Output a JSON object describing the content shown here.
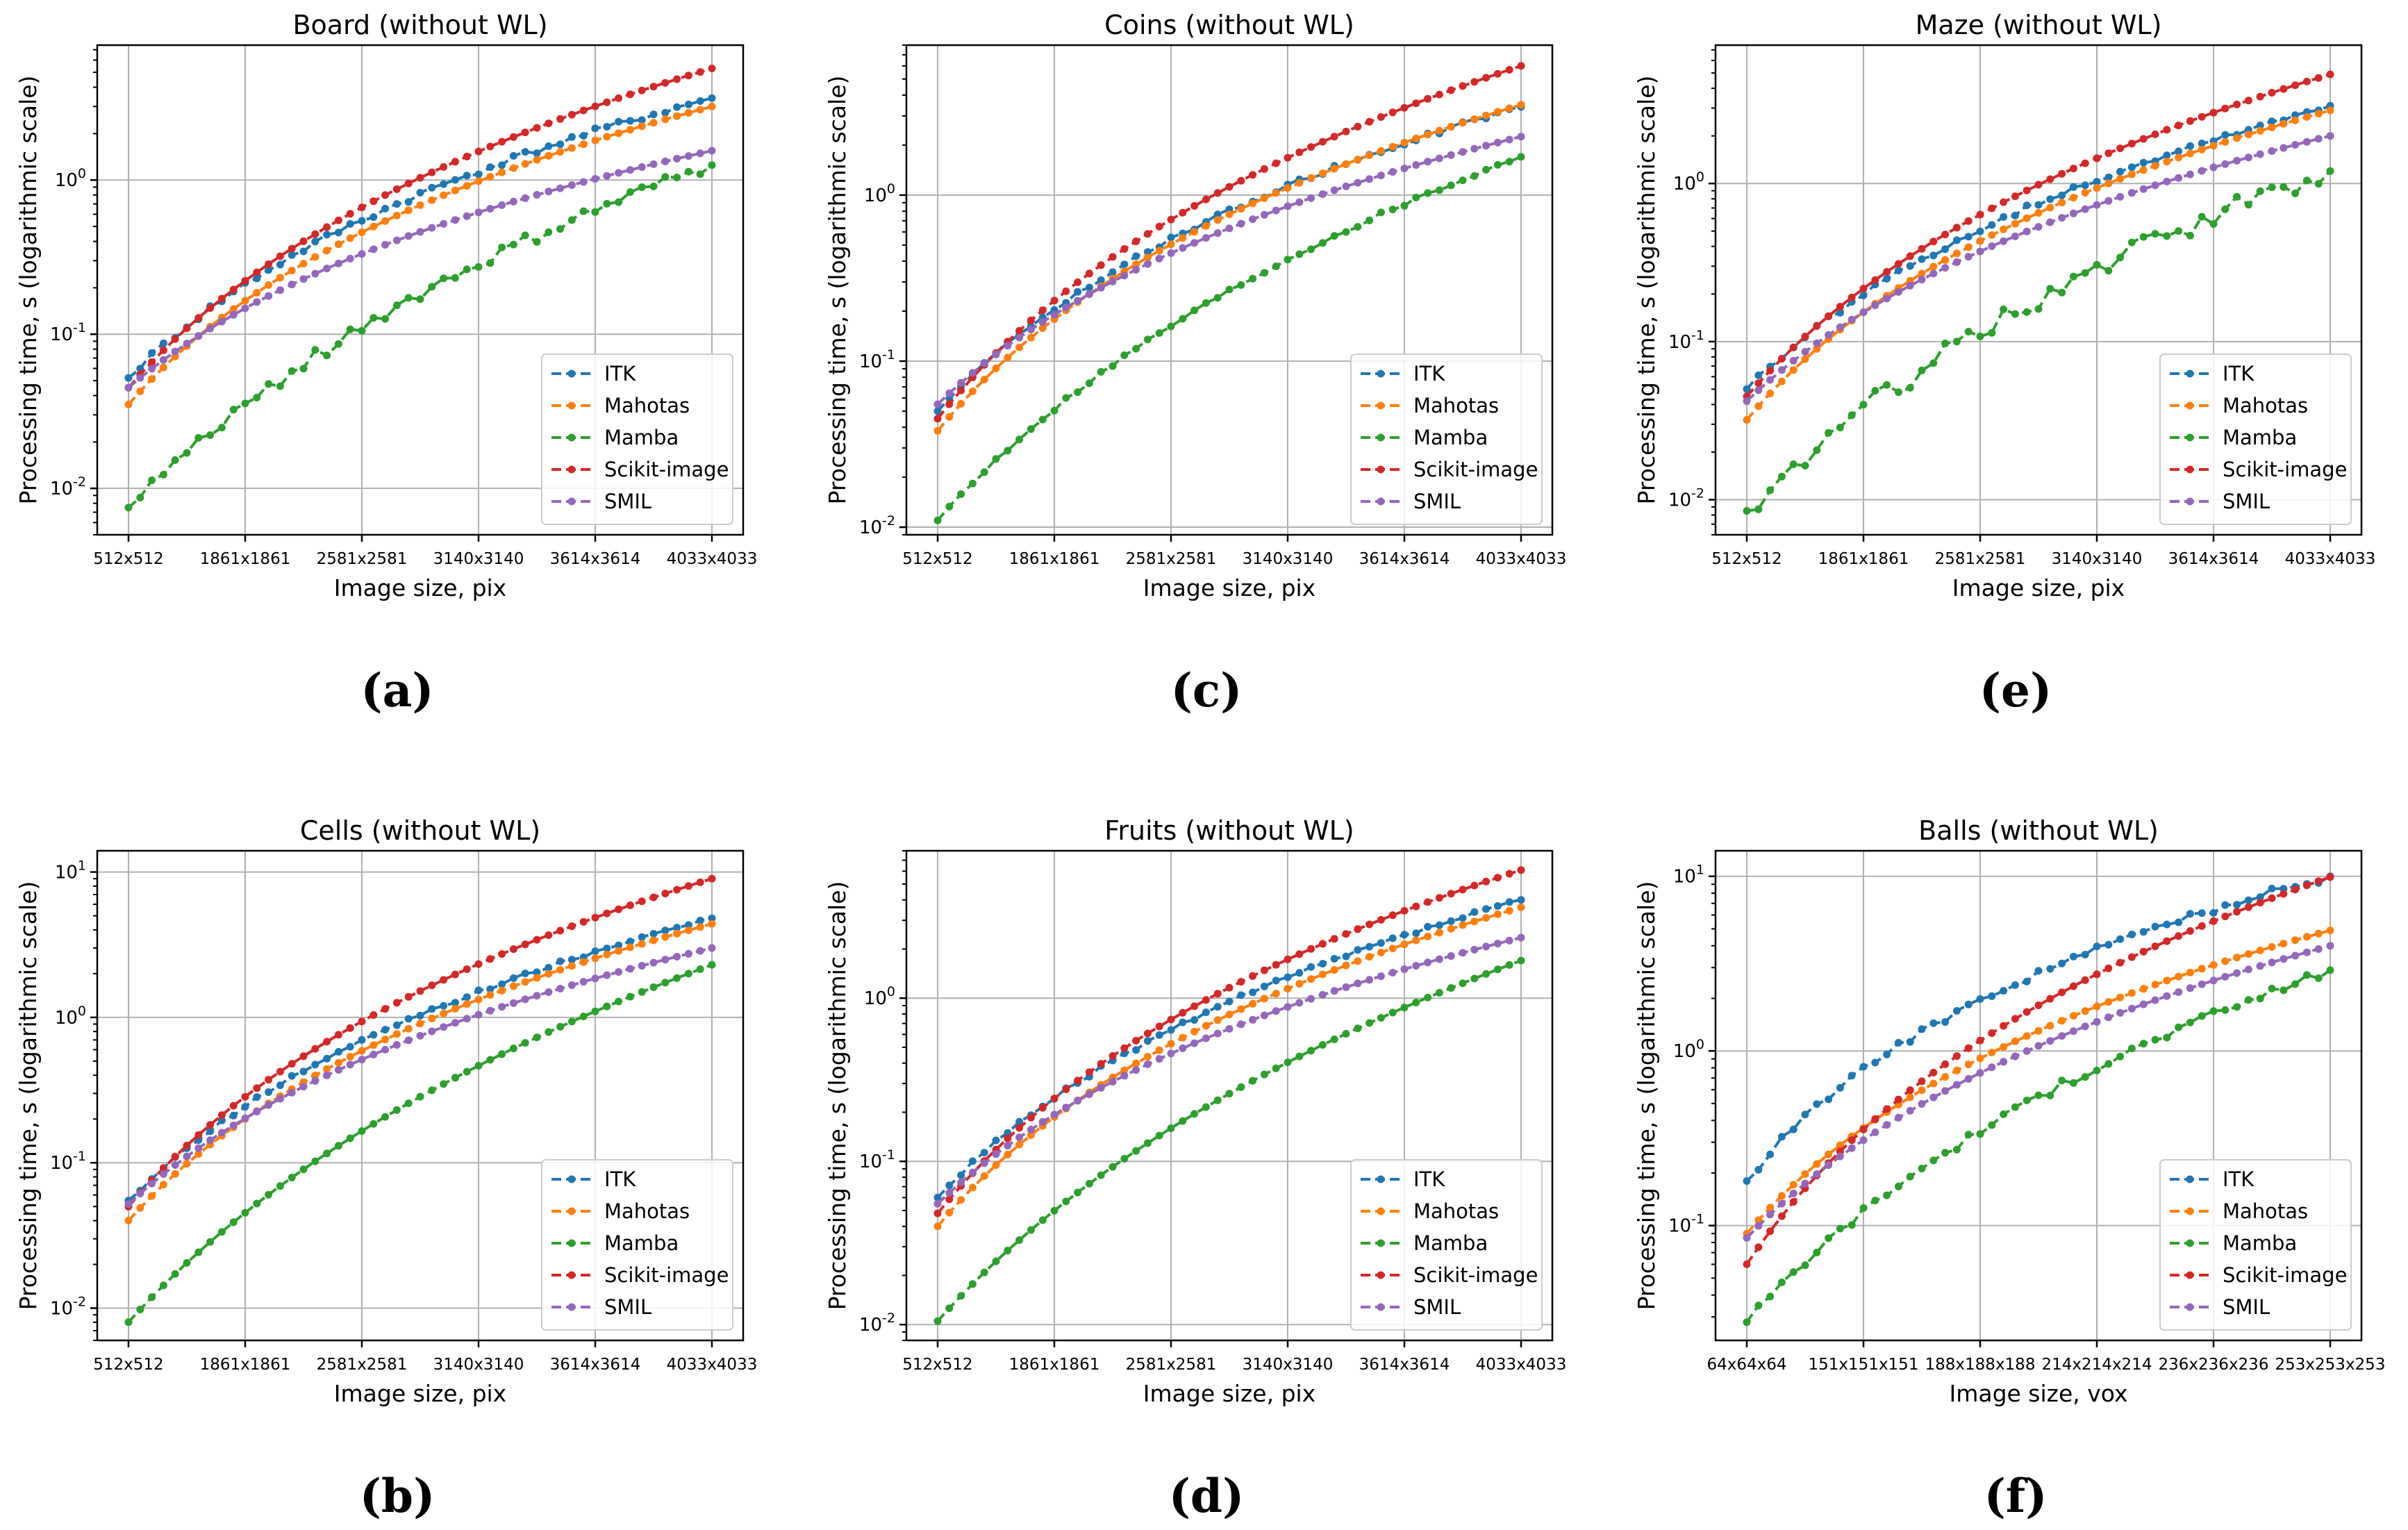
{
  "colors": {
    "ITK": "#1f77b4",
    "Mahotas": "#ff7f0e",
    "Mamba": "#2ca02c",
    "Scikit-image": "#d62728",
    "SMIL": "#9467bd",
    "grid": "#b0b0b0"
  },
  "chart_data": [
    {
      "id": "board",
      "panel_label": "(a)",
      "type": "line",
      "title": "Board (without WL)",
      "xlabel": "Image size, pix",
      "ylabel": "Processing time, s (logarithmic scale)",
      "yscale": "log",
      "ylim": [
        0.005,
        7.5
      ],
      "ytick_values": [
        0.01,
        0.1,
        1
      ],
      "ytick_labels": [
        "10^-2",
        "10^-1",
        "10^0"
      ],
      "xtick_labels": [
        "512x512",
        "1861x1861",
        "2581x2581",
        "3140x3140",
        "3614x3614",
        "4033x4033"
      ],
      "legend": [
        "ITK",
        "Mahotas",
        "Mamba",
        "Scikit-image",
        "SMIL"
      ],
      "legend_loc": "lower right",
      "series": [
        {
          "name": "ITK",
          "start": 0.052,
          "end": 3.4,
          "k": 0.35,
          "noise": 0.05
        },
        {
          "name": "Mahotas",
          "start": 0.035,
          "end": 3.0,
          "k": 0.3,
          "noise": 0.0
        },
        {
          "name": "Mamba",
          "start": 0.0075,
          "end": 1.25,
          "k": 0.55,
          "noise": 0.1
        },
        {
          "name": "Scikit-image",
          "start": 0.045,
          "end": 5.3,
          "k": 0.35,
          "noise": 0.0
        },
        {
          "name": "SMIL",
          "start": 0.045,
          "end": 1.55,
          "k": 0.35,
          "noise": 0.0
        }
      ]
    },
    {
      "id": "coins",
      "panel_label": "(c)",
      "type": "line",
      "title": "Coins (without WL)",
      "xlabel": "Image size, pix",
      "ylabel": "Processing time, s (logarithmic scale)",
      "yscale": "log",
      "ylim": [
        0.009,
        8
      ],
      "ytick_values": [
        0.01,
        0.1,
        1
      ],
      "ytick_labels": [
        "10^-2",
        "10^-1",
        "10^0"
      ],
      "xtick_labels": [
        "512x512",
        "1861x1861",
        "2581x2581",
        "3140x3140",
        "3614x3614",
        "4033x4033"
      ],
      "legend": [
        "ITK",
        "Mahotas",
        "Mamba",
        "Scikit-image",
        "SMIL"
      ],
      "legend_loc": "lower right",
      "series": [
        {
          "name": "ITK",
          "start": 0.05,
          "end": 3.4,
          "k": 0.35,
          "noise": 0.03
        },
        {
          "name": "Mahotas",
          "start": 0.038,
          "end": 3.5,
          "k": 0.32,
          "noise": 0.0
        },
        {
          "name": "Mamba",
          "start": 0.011,
          "end": 1.7,
          "k": 0.5,
          "noise": 0.03
        },
        {
          "name": "Scikit-image",
          "start": 0.045,
          "end": 6.0,
          "k": 0.35,
          "noise": 0.0
        },
        {
          "name": "SMIL",
          "start": 0.055,
          "end": 2.25,
          "k": 0.35,
          "noise": 0.0
        }
      ]
    },
    {
      "id": "maze",
      "panel_label": "(e)",
      "type": "line",
      "title": "Maze (without WL)",
      "xlabel": "Image size, pix",
      "ylabel": "Processing time, s (logarithmic scale)",
      "yscale": "log",
      "ylim": [
        0.006,
        7.5
      ],
      "ytick_values": [
        0.01,
        0.1,
        1
      ],
      "ytick_labels": [
        "10^-2",
        "10^-1",
        "10^0"
      ],
      "xtick_labels": [
        "512x512",
        "1861x1861",
        "2581x2581",
        "3140x3140",
        "3614x3614",
        "4033x4033"
      ],
      "legend": [
        "ITK",
        "Mahotas",
        "Mamba",
        "Scikit-image",
        "SMIL"
      ],
      "legend_loc": "lower right",
      "series": [
        {
          "name": "ITK",
          "start": 0.05,
          "end": 3.1,
          "k": 0.35,
          "noise": 0.04
        },
        {
          "name": "Mahotas",
          "start": 0.032,
          "end": 2.9,
          "k": 0.3,
          "noise": 0.0
        },
        {
          "name": "Mamba",
          "start": 0.0085,
          "end": 1.2,
          "k": 0.55,
          "noise": 0.16
        },
        {
          "name": "Scikit-image",
          "start": 0.045,
          "end": 4.9,
          "k": 0.35,
          "noise": 0.0
        },
        {
          "name": "SMIL",
          "start": 0.042,
          "end": 2.0,
          "k": 0.35,
          "noise": 0.0
        }
      ]
    },
    {
      "id": "cells",
      "panel_label": "(b)",
      "type": "line",
      "title": "Cells (without WL)",
      "xlabel": "Image size, pix",
      "ylabel": "Processing time, s (logarithmic scale)",
      "yscale": "log",
      "ylim": [
        0.006,
        14
      ],
      "ytick_values": [
        0.01,
        0.1,
        1,
        10
      ],
      "ytick_labels": [
        "10^-2",
        "10^-1",
        "10^0",
        "10^1"
      ],
      "xtick_labels": [
        "512x512",
        "1861x1861",
        "2581x2581",
        "3140x3140",
        "3614x3614",
        "4033x4033"
      ],
      "legend": [
        "ITK",
        "Mahotas",
        "Mamba",
        "Scikit-image",
        "SMIL"
      ],
      "legend_loc": "lower right",
      "series": [
        {
          "name": "ITK",
          "start": 0.055,
          "end": 4.8,
          "k": 0.35,
          "noise": 0.03
        },
        {
          "name": "Mahotas",
          "start": 0.04,
          "end": 4.4,
          "k": 0.32,
          "noise": 0.0
        },
        {
          "name": "Mamba",
          "start": 0.008,
          "end": 2.3,
          "k": 0.5,
          "noise": 0.0
        },
        {
          "name": "Scikit-image",
          "start": 0.05,
          "end": 9.0,
          "k": 0.35,
          "noise": 0.0
        },
        {
          "name": "SMIL",
          "start": 0.052,
          "end": 3.0,
          "k": 0.35,
          "noise": 0.0
        }
      ]
    },
    {
      "id": "fruits",
      "panel_label": "(d)",
      "type": "line",
      "title": "Fruits (without WL)",
      "xlabel": "Image size, pix",
      "ylabel": "Processing time, s (logarithmic scale)",
      "yscale": "log",
      "ylim": [
        0.008,
        8
      ],
      "ytick_values": [
        0.01,
        0.1,
        1
      ],
      "ytick_labels": [
        "10^-2",
        "10^-1",
        "10^0"
      ],
      "xtick_labels": [
        "512x512",
        "1861x1861",
        "2581x2581",
        "3140x3140",
        "3614x3614",
        "4033x4033"
      ],
      "legend": [
        "ITK",
        "Mahotas",
        "Mamba",
        "Scikit-image",
        "SMIL"
      ],
      "legend_loc": "lower right",
      "series": [
        {
          "name": "ITK",
          "start": 0.06,
          "end": 4.0,
          "k": 0.35,
          "noise": 0.03
        },
        {
          "name": "Mahotas",
          "start": 0.04,
          "end": 3.6,
          "k": 0.32,
          "noise": 0.0
        },
        {
          "name": "Mamba",
          "start": 0.0105,
          "end": 1.7,
          "k": 0.5,
          "noise": 0.0
        },
        {
          "name": "Scikit-image",
          "start": 0.048,
          "end": 6.1,
          "k": 0.35,
          "noise": 0.0
        },
        {
          "name": "SMIL",
          "start": 0.055,
          "end": 2.35,
          "k": 0.35,
          "noise": 0.0
        }
      ]
    },
    {
      "id": "balls",
      "panel_label": "(f)",
      "type": "line",
      "title": "Balls (without WL)",
      "xlabel": "Image size, vox",
      "ylabel": "Processing time, s (logarithmic scale)",
      "yscale": "log",
      "ylim": [
        0.022,
        14
      ],
      "ytick_values": [
        0.1,
        1,
        10
      ],
      "ytick_labels": [
        "10^-1",
        "10^0",
        "10^1"
      ],
      "xtick_labels": [
        "64x64x64",
        "151x151x151",
        "188x188x188",
        "214x214x214",
        "236x236x236",
        "253x253x253"
      ],
      "legend": [
        "ITK",
        "Mahotas",
        "Mamba",
        "Scikit-image",
        "SMIL"
      ],
      "legend_loc": "lower right",
      "series": [
        {
          "name": "ITK",
          "start": 0.18,
          "end": 10.0,
          "k": 0.25,
          "noise": 0.05
        },
        {
          "name": "Mahotas",
          "start": 0.09,
          "end": 4.9,
          "k": 0.3,
          "noise": 0.0
        },
        {
          "name": "Mamba",
          "start": 0.028,
          "end": 2.9,
          "k": 0.45,
          "noise": 0.06
        },
        {
          "name": "Scikit-image",
          "start": 0.06,
          "end": 9.9,
          "k": 0.3,
          "noise": 0.0
        },
        {
          "name": "SMIL",
          "start": 0.085,
          "end": 4.0,
          "k": 0.35,
          "noise": 0.0
        }
      ]
    }
  ]
}
